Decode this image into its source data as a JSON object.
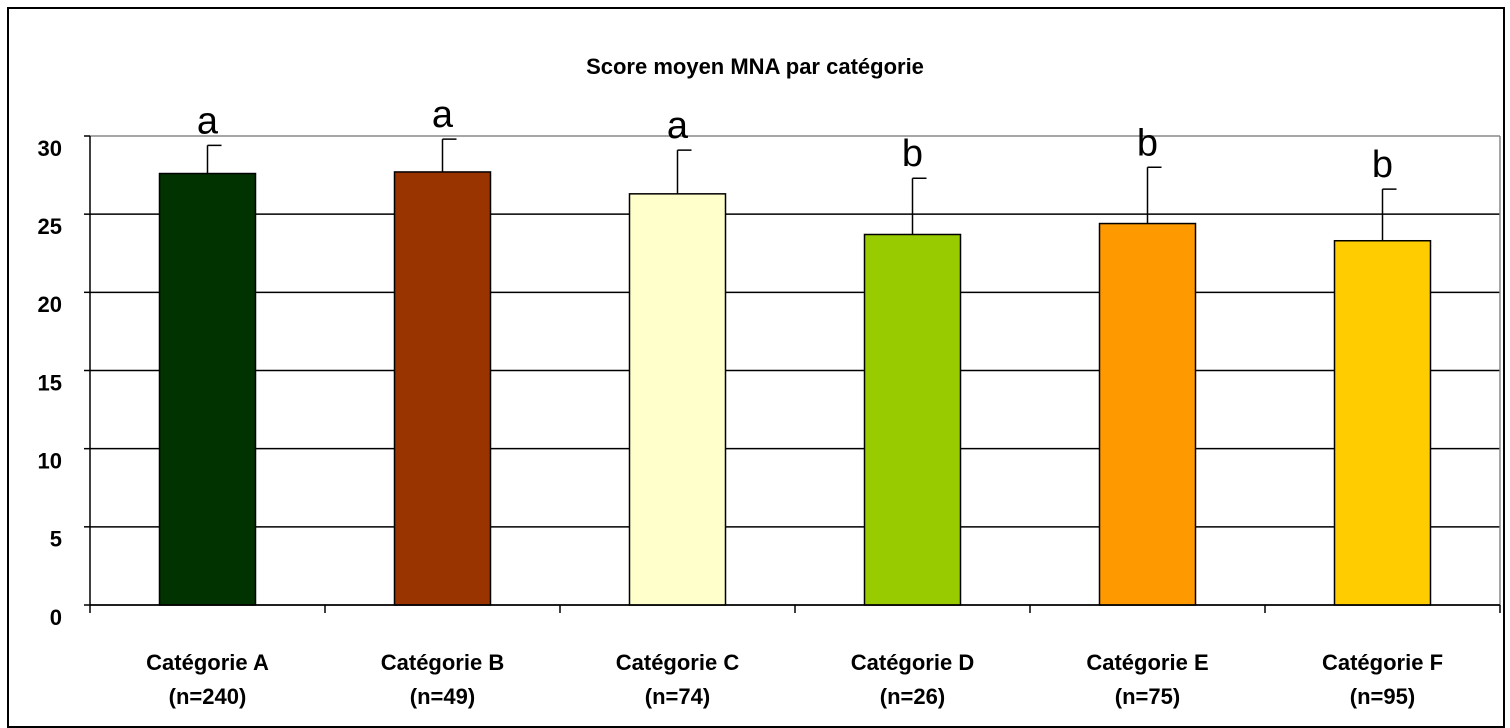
{
  "chart_data": {
    "type": "bar",
    "title": "Score moyen MNA par catégorie",
    "categories": [
      [
        "Catégorie A",
        "(n=240)"
      ],
      [
        "Catégorie B",
        "(n=49)"
      ],
      [
        "Catégorie C",
        "(n=74)"
      ],
      [
        "Catégorie D",
        "(n=26)"
      ],
      [
        "Catégorie E",
        "(n=75)"
      ],
      [
        "Catégorie F",
        "(n=95)"
      ]
    ],
    "values": [
      27.6,
      27.7,
      26.3,
      23.7,
      24.4,
      23.3
    ],
    "errors": [
      1.8,
      2.1,
      2.8,
      3.6,
      3.6,
      3.3
    ],
    "annotations": [
      "a",
      "a",
      "a",
      "b",
      "b",
      "b"
    ],
    "colors": [
      "#003300",
      "#993300",
      "#ffffcc",
      "#99cc00",
      "#ff9900",
      "#ffcc00"
    ],
    "ylim": [
      0,
      30
    ],
    "yticks": [
      0,
      5,
      10,
      15,
      20,
      25,
      30
    ],
    "grid": true
  }
}
